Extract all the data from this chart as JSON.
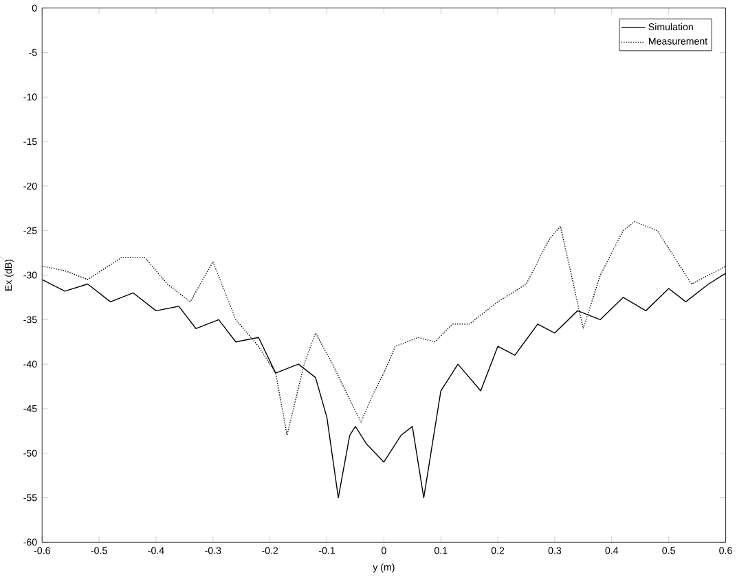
{
  "chart_data": {
    "type": "line",
    "xlabel": "y (m)",
    "ylabel": "Ex (dB)",
    "xlim": [
      -0.6,
      0.6
    ],
    "ylim": [
      -60,
      0
    ],
    "xticks": [
      -0.6,
      -0.5,
      -0.4,
      -0.3,
      -0.2,
      -0.1,
      0,
      0.1,
      0.2,
      0.3,
      0.4,
      0.5,
      0.6
    ],
    "yticks": [
      -60,
      -55,
      -50,
      -45,
      -40,
      -35,
      -30,
      -25,
      -20,
      -15,
      -10,
      -5,
      0
    ],
    "grid": false,
    "legend": "top right",
    "marker": "none",
    "series": [
      {
        "name": "Simulation",
        "color": "#000000",
        "line_style": "solid",
        "x": [
          -0.6,
          -0.56,
          -0.52,
          -0.48,
          -0.44,
          -0.4,
          -0.36,
          -0.33,
          -0.29,
          -0.26,
          -0.22,
          -0.19,
          -0.15,
          -0.12,
          -0.1,
          -0.08,
          -0.06,
          -0.05,
          -0.03,
          0,
          0.03,
          0.05,
          0.07,
          0.1,
          0.13,
          0.17,
          0.2,
          0.23,
          0.27,
          0.3,
          0.34,
          0.38,
          0.42,
          0.46,
          0.5,
          0.53,
          0.57,
          0.6
        ],
        "values": [
          -30.5,
          -31.8,
          -31,
          -33,
          -32,
          -34,
          -33.5,
          -36,
          -35,
          -37.5,
          -37,
          -41,
          -40,
          -41.5,
          -46,
          -55,
          -48,
          -47,
          -49,
          -51,
          -48,
          -47,
          -55,
          -43,
          -40,
          -43,
          -38,
          -39,
          -35.5,
          -36.5,
          -34,
          -35,
          -32.5,
          -34,
          -31.5,
          -33,
          -31,
          -29.8
        ]
      },
      {
        "name": "Measurement",
        "color": "#000000",
        "line_style": "dotted",
        "x": [
          -0.6,
          -0.56,
          -0.52,
          -0.46,
          -0.42,
          -0.38,
          -0.34,
          -0.3,
          -0.26,
          -0.22,
          -0.19,
          -0.17,
          -0.14,
          -0.12,
          -0.09,
          -0.06,
          -0.04,
          -0.02,
          0,
          0.02,
          0.06,
          0.09,
          0.12,
          0.15,
          0.2,
          0.25,
          0.29,
          0.31,
          0.35,
          0.38,
          0.42,
          0.44,
          0.48,
          0.51,
          0.54,
          0.57,
          0.6
        ],
        "values": [
          -29,
          -29.5,
          -30.5,
          -28,
          -28,
          -31,
          -33,
          -28.5,
          -35,
          -38,
          -41,
          -48,
          -40,
          -36.5,
          -40,
          -44,
          -46.5,
          -43.5,
          -41,
          -38,
          -37,
          -37.5,
          -35.5,
          -35.5,
          -33,
          -31,
          -26,
          -24.5,
          -36,
          -30,
          -25,
          -24,
          -25,
          -28,
          -31,
          -30,
          -29
        ]
      }
    ]
  }
}
